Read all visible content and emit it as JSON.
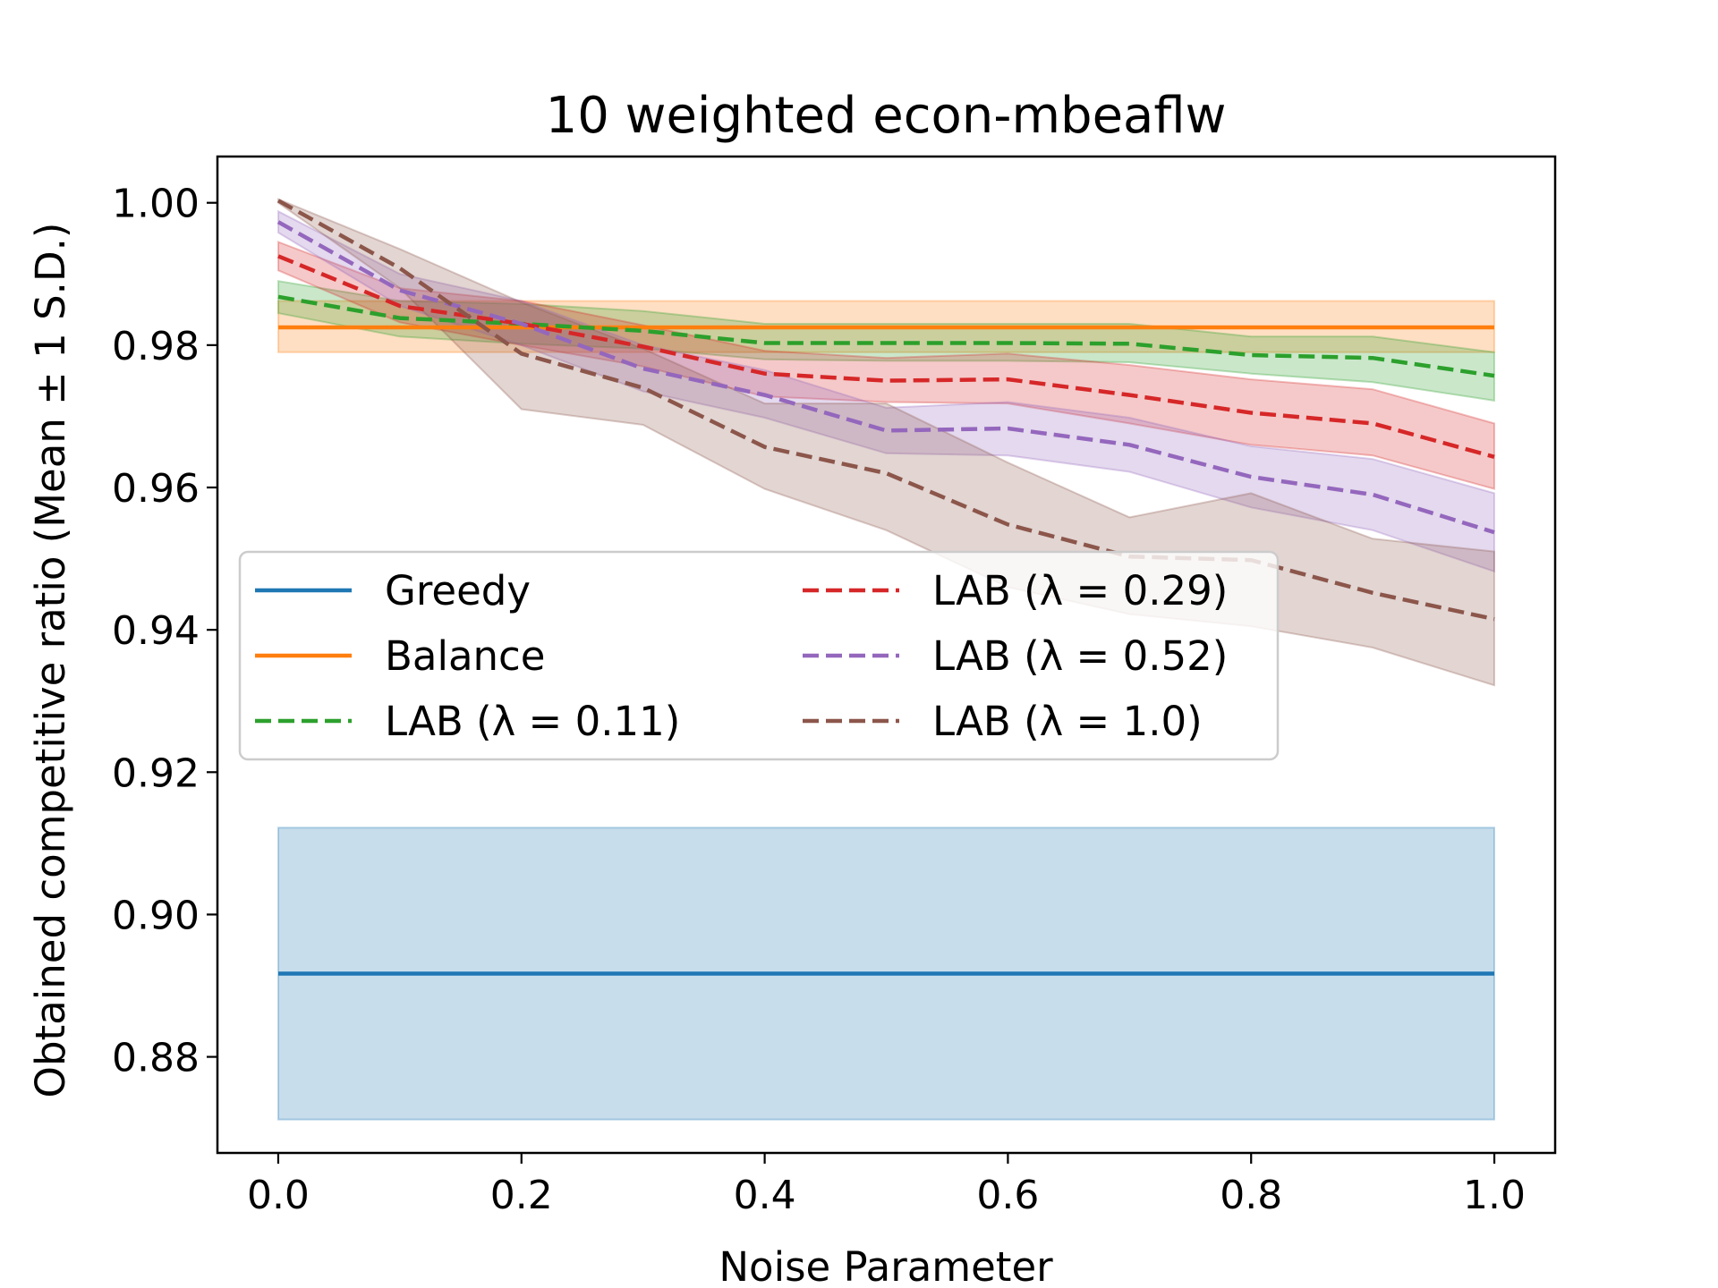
{
  "chart_data": {
    "type": "line",
    "title": "10 weighted econ-mbeaflw",
    "xlabel": "Noise Parameter",
    "ylabel": "Obtained competitive ratio (Mean ± 1 S.D.)",
    "xlim": [
      -0.05,
      1.05
    ],
    "ylim": [
      0.8665,
      1.0065
    ],
    "xticks": [
      0.0,
      0.2,
      0.4,
      0.6,
      0.8,
      1.0
    ],
    "xtick_labels": [
      "0.0",
      "0.2",
      "0.4",
      "0.6",
      "0.8",
      "1.0"
    ],
    "yticks": [
      0.88,
      0.9,
      0.92,
      0.94,
      0.96,
      0.98,
      1.0
    ],
    "ytick_labels": [
      "0.88",
      "0.90",
      "0.92",
      "0.94",
      "0.96",
      "0.98",
      "1.00"
    ],
    "grid": false,
    "legend_position": "center-left",
    "x": [
      0.0,
      0.1,
      0.2,
      0.3,
      0.4,
      0.5,
      0.6,
      0.7,
      0.8,
      0.9,
      1.0
    ],
    "series": [
      {
        "name": "Greedy",
        "color": "#1f77b4",
        "dashed": false,
        "mean": [
          0.8917,
          0.8917,
          0.8917,
          0.8917,
          0.8917,
          0.8917,
          0.8917,
          0.8917,
          0.8917,
          0.8917,
          0.8917
        ],
        "lower": [
          0.8712,
          0.8712,
          0.8712,
          0.8712,
          0.8712,
          0.8712,
          0.8712,
          0.8712,
          0.8712,
          0.8712,
          0.8712
        ],
        "upper": [
          0.9122,
          0.9122,
          0.9122,
          0.9122,
          0.9122,
          0.9122,
          0.9122,
          0.9122,
          0.9122,
          0.9122,
          0.9122
        ]
      },
      {
        "name": "Balance",
        "color": "#ff7f0e",
        "dashed": false,
        "mean": [
          0.9825,
          0.9825,
          0.9825,
          0.9825,
          0.9825,
          0.9825,
          0.9825,
          0.9825,
          0.9825,
          0.9825,
          0.9825
        ],
        "lower": [
          0.979,
          0.979,
          0.979,
          0.979,
          0.979,
          0.979,
          0.979,
          0.979,
          0.979,
          0.979,
          0.979
        ],
        "upper": [
          0.9862,
          0.9862,
          0.9862,
          0.9862,
          0.9862,
          0.9862,
          0.9862,
          0.9862,
          0.9862,
          0.9862,
          0.9862
        ]
      },
      {
        "name": "LAB (λ = 0.11)",
        "color": "#2ca02c",
        "dashed": true,
        "mean": [
          0.9868,
          0.9838,
          0.983,
          0.982,
          0.9803,
          0.9803,
          0.9803,
          0.9802,
          0.9786,
          0.9782,
          0.9757
        ],
        "lower": [
          0.9845,
          0.9812,
          0.9802,
          0.9795,
          0.978,
          0.9778,
          0.9778,
          0.9776,
          0.976,
          0.9748,
          0.9722
        ],
        "upper": [
          0.989,
          0.9862,
          0.9858,
          0.9848,
          0.983,
          0.983,
          0.983,
          0.983,
          0.9812,
          0.9812,
          0.979
        ]
      },
      {
        "name": "LAB (λ = 0.29)",
        "color": "#d62728",
        "dashed": true,
        "mean": [
          0.9925,
          0.9855,
          0.983,
          0.9798,
          0.976,
          0.975,
          0.9752,
          0.973,
          0.9705,
          0.969,
          0.9643
        ],
        "lower": [
          0.9905,
          0.9832,
          0.98,
          0.977,
          0.9728,
          0.972,
          0.9718,
          0.969,
          0.966,
          0.9645,
          0.9598
        ],
        "upper": [
          0.9945,
          0.988,
          0.9862,
          0.9828,
          0.9792,
          0.9782,
          0.9788,
          0.9772,
          0.9752,
          0.9738,
          0.969
        ]
      },
      {
        "name": "LAB (λ = 0.52)",
        "color": "#9467bd",
        "dashed": true,
        "mean": [
          0.9973,
          0.9877,
          0.983,
          0.9767,
          0.973,
          0.968,
          0.9683,
          0.966,
          0.9615,
          0.959,
          0.9537
        ],
        "lower": [
          0.9958,
          0.9855,
          0.98,
          0.9735,
          0.9698,
          0.9648,
          0.9645,
          0.9622,
          0.9572,
          0.954,
          0.9482
        ],
        "upper": [
          0.9988,
          0.99,
          0.9862,
          0.98,
          0.9765,
          0.9712,
          0.972,
          0.9698,
          0.9658,
          0.964,
          0.9592
        ]
      },
      {
        "name": "LAB (λ = 1.0)",
        "color": "#8c564b",
        "dashed": true,
        "mean": [
          1.0003,
          0.9908,
          0.9788,
          0.974,
          0.9657,
          0.962,
          0.9548,
          0.9503,
          0.9498,
          0.9452,
          0.9415
        ],
        "lower": [
          1.0,
          0.988,
          0.971,
          0.9688,
          0.9598,
          0.954,
          0.946,
          0.9422,
          0.9405,
          0.9375,
          0.9322
        ],
        "upper": [
          1.0005,
          0.9935,
          0.986,
          0.9795,
          0.9718,
          0.9718,
          0.9635,
          0.9558,
          0.9592,
          0.9528,
          0.951
        ]
      }
    ]
  }
}
